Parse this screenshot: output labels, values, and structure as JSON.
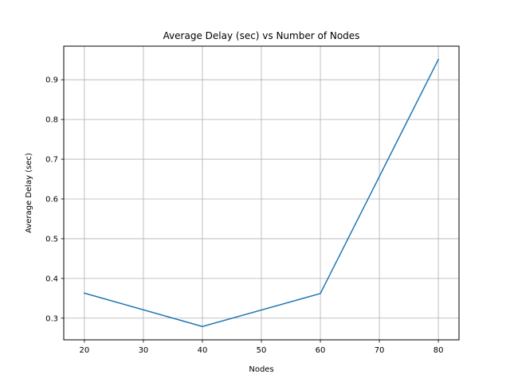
{
  "chart_data": {
    "type": "line",
    "title": "Average Delay (sec) vs Number of Nodes",
    "xlabel": "Nodes",
    "ylabel": "Average Delay (sec)",
    "x": [
      20,
      40,
      60,
      80
    ],
    "series": [
      {
        "name": "",
        "values": [
          0.363,
          0.279,
          0.362,
          0.951
        ],
        "color": "#1f77b4"
      }
    ],
    "xlim": [
      16.5,
      83.5
    ],
    "ylim": [
      0.2455,
      0.9845
    ],
    "xticks": [
      20,
      30,
      40,
      50,
      60,
      70,
      80
    ],
    "yticks": [
      0.3,
      0.4,
      0.5,
      0.6,
      0.7,
      0.8,
      0.9
    ],
    "ytick_labels": [
      "0.3",
      "0.4",
      "0.5",
      "0.6",
      "0.7",
      "0.8",
      "0.9"
    ],
    "grid": true,
    "colors": {
      "grid": "#b0b0b0",
      "axes": "#000000"
    }
  }
}
